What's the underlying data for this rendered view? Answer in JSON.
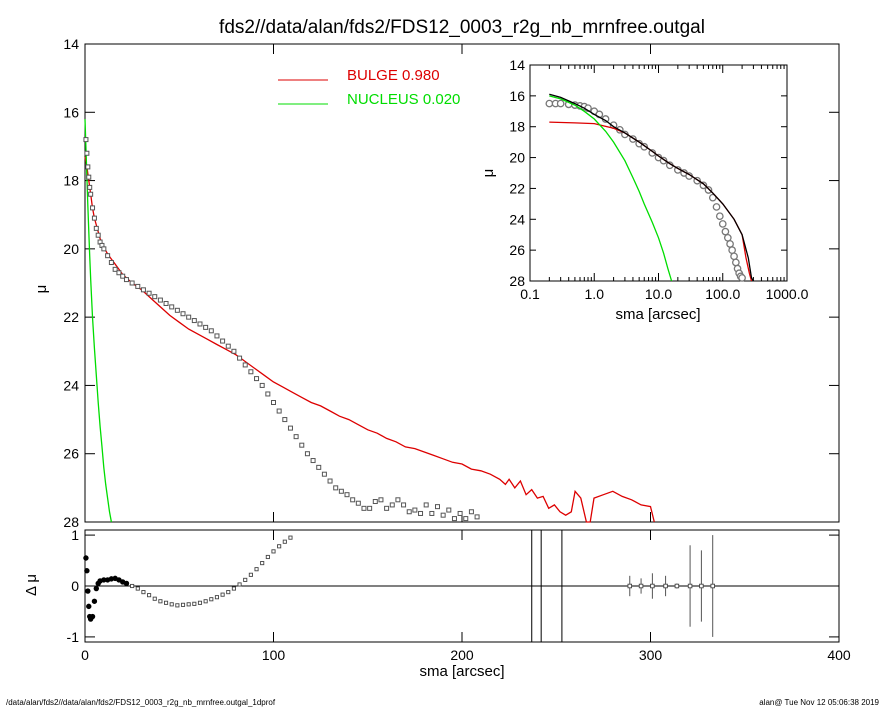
{
  "chart_data": {
    "title": "fds2//data/alan/fds2/FDS12_0003_r2g_nb_mrnfree.outgal",
    "footer_left": "/data/alan/fds2//data/alan/fds2/FDS12_0003_r2g_nb_mrnfree.outgal_1dprof",
    "footer_right": "alan@  Tue Nov 12 05:06:38 2019",
    "legend": [
      {
        "name": "BULGE  0.980",
        "color": "#dd0000"
      },
      {
        "name": "NUCLEUS  0.020",
        "color": "#00dd00"
      }
    ],
    "main": {
      "type": "scatter",
      "ylabel": "μ",
      "xlim": [
        0,
        400
      ],
      "ylim": [
        28,
        14
      ],
      "yticks": [
        "14",
        "16",
        "18",
        "20",
        "22",
        "24",
        "26",
        "28"
      ],
      "data_points": [
        [
          0.5,
          16.8
        ],
        [
          1,
          17.2
        ],
        [
          1.5,
          17.6
        ],
        [
          2,
          17.9
        ],
        [
          2.5,
          18.2
        ],
        [
          3,
          18.4
        ],
        [
          4,
          18.8
        ],
        [
          5,
          19.1
        ],
        [
          6,
          19.4
        ],
        [
          7,
          19.6
        ],
        [
          8,
          19.8
        ],
        [
          9,
          19.9
        ],
        [
          10,
          20.0
        ],
        [
          12,
          20.2
        ],
        [
          14,
          20.4
        ],
        [
          16,
          20.6
        ],
        [
          18,
          20.7
        ],
        [
          20,
          20.8
        ],
        [
          22,
          20.9
        ],
        [
          25,
          21.0
        ],
        [
          28,
          21.1
        ],
        [
          31,
          21.2
        ],
        [
          34,
          21.3
        ],
        [
          37,
          21.4
        ],
        [
          40,
          21.5
        ],
        [
          43,
          21.6
        ],
        [
          46,
          21.7
        ],
        [
          49,
          21.8
        ],
        [
          52,
          21.9
        ],
        [
          55,
          22.0
        ],
        [
          58,
          22.1
        ],
        [
          61,
          22.2
        ],
        [
          64,
          22.3
        ],
        [
          67,
          22.4
        ],
        [
          70,
          22.55
        ],
        [
          73,
          22.7
        ],
        [
          76,
          22.85
        ],
        [
          79,
          23.0
        ],
        [
          82,
          23.2
        ],
        [
          85,
          23.4
        ],
        [
          88,
          23.6
        ],
        [
          91,
          23.8
        ],
        [
          94,
          24.0
        ],
        [
          97,
          24.25
        ],
        [
          100,
          24.5
        ],
        [
          103,
          24.75
        ],
        [
          106,
          25.0
        ],
        [
          109,
          25.25
        ],
        [
          112,
          25.5
        ],
        [
          115,
          25.75
        ],
        [
          118,
          26.0
        ],
        [
          121,
          26.2
        ],
        [
          124,
          26.4
        ],
        [
          127,
          26.6
        ],
        [
          130,
          26.8
        ],
        [
          133,
          27.0
        ],
        [
          136,
          27.1
        ],
        [
          139,
          27.2
        ],
        [
          142,
          27.35
        ],
        [
          145,
          27.45
        ],
        [
          148,
          27.6
        ],
        [
          151,
          27.6
        ],
        [
          154,
          27.4
        ],
        [
          157,
          27.35
        ],
        [
          160,
          27.6
        ],
        [
          163,
          27.5
        ],
        [
          166,
          27.35
        ],
        [
          169,
          27.5
        ],
        [
          172,
          27.7
        ],
        [
          175,
          27.65
        ],
        [
          178,
          27.75
        ],
        [
          181,
          27.5
        ],
        [
          184,
          27.75
        ],
        [
          187,
          27.55
        ],
        [
          190,
          27.8
        ],
        [
          193,
          27.65
        ],
        [
          196,
          27.9
        ],
        [
          199,
          27.75
        ],
        [
          202,
          27.9
        ],
        [
          205,
          27.7
        ],
        [
          208,
          27.85
        ]
      ],
      "bulge_model": [
        [
          0,
          17.3
        ],
        [
          1,
          17.6
        ],
        [
          2,
          18.0
        ],
        [
          3,
          18.4
        ],
        [
          4,
          18.8
        ],
        [
          5,
          19.1
        ],
        [
          6,
          19.3
        ],
        [
          8,
          19.7
        ],
        [
          10,
          19.95
        ],
        [
          12,
          20.15
        ],
        [
          14,
          20.3
        ],
        [
          16,
          20.45
        ],
        [
          18,
          20.6
        ],
        [
          20,
          20.75
        ],
        [
          25,
          21.0
        ],
        [
          30,
          21.2
        ],
        [
          35,
          21.45
        ],
        [
          40,
          21.7
        ],
        [
          45,
          21.95
        ],
        [
          50,
          22.15
        ],
        [
          55,
          22.35
        ],
        [
          60,
          22.5
        ],
        [
          65,
          22.65
        ],
        [
          70,
          22.8
        ],
        [
          75,
          22.95
        ],
        [
          80,
          23.1
        ],
        [
          85,
          23.3
        ],
        [
          90,
          23.5
        ],
        [
          95,
          23.7
        ],
        [
          100,
          23.9
        ],
        [
          105,
          24.05
        ],
        [
          110,
          24.2
        ],
        [
          115,
          24.35
        ],
        [
          120,
          24.5
        ],
        [
          125,
          24.6
        ],
        [
          130,
          24.75
        ],
        [
          135,
          24.9
        ],
        [
          140,
          25.0
        ],
        [
          145,
          25.15
        ],
        [
          150,
          25.3
        ],
        [
          155,
          25.4
        ],
        [
          160,
          25.55
        ],
        [
          165,
          25.65
        ],
        [
          170,
          25.8
        ],
        [
          175,
          25.85
        ],
        [
          180,
          25.95
        ],
        [
          185,
          26.05
        ],
        [
          190,
          26.15
        ],
        [
          195,
          26.25
        ],
        [
          200,
          26.3
        ],
        [
          205,
          26.45
        ],
        [
          210,
          26.5
        ],
        [
          215,
          26.6
        ],
        [
          220,
          26.75
        ],
        [
          223,
          26.9
        ],
        [
          225,
          26.75
        ],
        [
          228,
          27.0
        ],
        [
          231,
          26.8
        ],
        [
          234,
          27.2
        ],
        [
          237,
          27.05
        ],
        [
          240,
          27.3
        ],
        [
          243,
          27.25
        ],
        [
          246,
          27.6
        ],
        [
          249,
          27.5
        ],
        [
          252,
          27.7
        ],
        [
          255,
          27.8
        ],
        [
          258,
          27.7
        ],
        [
          260,
          27.1
        ],
        [
          263,
          27.3
        ],
        [
          266,
          28.0
        ],
        [
          268,
          28.0
        ],
        [
          270,
          27.3
        ],
        [
          275,
          27.2
        ],
        [
          280,
          27.1
        ],
        [
          285,
          27.25
        ],
        [
          290,
          27.35
        ],
        [
          295,
          27.5
        ],
        [
          300,
          27.55
        ],
        [
          302,
          28.0
        ]
      ],
      "nucleus_model": [
        [
          0,
          16.2
        ],
        [
          0.5,
          17.0
        ],
        [
          1,
          17.9
        ],
        [
          1.5,
          18.7
        ],
        [
          2,
          19.5
        ],
        [
          2.5,
          20.2
        ],
        [
          3,
          20.9
        ],
        [
          4,
          22.0
        ],
        [
          5,
          22.9
        ],
        [
          6,
          23.7
        ],
        [
          7,
          24.5
        ],
        [
          8,
          25.2
        ],
        [
          9,
          25.8
        ],
        [
          10,
          26.4
        ],
        [
          11,
          26.9
        ],
        [
          12,
          27.3
        ],
        [
          13,
          27.7
        ],
        [
          14,
          28.0
        ]
      ]
    },
    "inset": {
      "type": "scatter",
      "xscale": "log",
      "xlabel": "sma [arcsec]",
      "ylabel": "μ",
      "xlim": [
        0.1,
        1000
      ],
      "ylim": [
        28,
        14
      ],
      "xticks": [
        "0.1",
        "1.0",
        "10.0",
        "100.0",
        "1000.0"
      ],
      "yticks": [
        "14",
        "16",
        "18",
        "20",
        "22",
        "24",
        "26",
        "28"
      ],
      "data_points": [
        [
          0.2,
          16.5
        ],
        [
          0.25,
          16.5
        ],
        [
          0.3,
          16.5
        ],
        [
          0.4,
          16.55
        ],
        [
          0.5,
          16.6
        ],
        [
          0.6,
          16.65
        ],
        [
          0.7,
          16.7
        ],
        [
          0.8,
          16.8
        ],
        [
          1.0,
          17.0
        ],
        [
          1.2,
          17.2
        ],
        [
          1.5,
          17.5
        ],
        [
          2,
          17.9
        ],
        [
          2.5,
          18.2
        ],
        [
          3,
          18.5
        ],
        [
          4,
          18.8
        ],
        [
          5,
          19.1
        ],
        [
          6,
          19.3
        ],
        [
          8,
          19.7
        ],
        [
          10,
          20.0
        ],
        [
          12,
          20.2
        ],
        [
          15,
          20.5
        ],
        [
          20,
          20.8
        ],
        [
          25,
          21.0
        ],
        [
          30,
          21.2
        ],
        [
          40,
          21.5
        ],
        [
          50,
          21.8
        ],
        [
          60,
          22.1
        ],
        [
          70,
          22.6
        ],
        [
          80,
          23.2
        ],
        [
          90,
          23.8
        ],
        [
          100,
          24.3
        ],
        [
          110,
          24.8
        ],
        [
          120,
          25.2
        ],
        [
          130,
          25.6
        ],
        [
          140,
          26.0
        ],
        [
          150,
          26.4
        ],
        [
          160,
          26.8
        ],
        [
          170,
          27.2
        ],
        [
          180,
          27.5
        ],
        [
          190,
          27.7
        ],
        [
          200,
          27.8
        ]
      ],
      "total_model": [
        [
          0.2,
          15.9
        ],
        [
          0.3,
          16.1
        ],
        [
          0.5,
          16.5
        ],
        [
          0.7,
          16.8
        ],
        [
          1,
          17.2
        ],
        [
          1.5,
          17.6
        ],
        [
          2,
          18.0
        ],
        [
          3,
          18.4
        ],
        [
          5,
          19.0
        ],
        [
          8,
          19.6
        ],
        [
          10,
          19.9
        ],
        [
          15,
          20.4
        ],
        [
          20,
          20.7
        ],
        [
          30,
          21.1
        ],
        [
          50,
          21.7
        ],
        [
          70,
          22.3
        ],
        [
          100,
          23.0
        ],
        [
          150,
          24.0
        ],
        [
          200,
          25.0
        ],
        [
          250,
          26.5
        ],
        [
          280,
          27.8
        ],
        [
          300,
          28.0
        ]
      ],
      "bulge_model": [
        [
          0.2,
          17.7
        ],
        [
          0.5,
          17.75
        ],
        [
          1,
          17.8
        ],
        [
          2,
          18.1
        ],
        [
          3,
          18.4
        ],
        [
          5,
          19.0
        ],
        [
          8,
          19.6
        ],
        [
          10,
          19.9
        ],
        [
          15,
          20.4
        ],
        [
          20,
          20.7
        ],
        [
          30,
          21.1
        ],
        [
          50,
          21.7
        ],
        [
          70,
          22.3
        ],
        [
          100,
          23.0
        ],
        [
          150,
          24.0
        ],
        [
          200,
          25.0
        ],
        [
          230,
          26.5
        ],
        [
          260,
          27.5
        ],
        [
          280,
          28.0
        ]
      ],
      "nucleus_model": [
        [
          0.2,
          16.0
        ],
        [
          0.3,
          16.2
        ],
        [
          0.5,
          16.6
        ],
        [
          0.7,
          17.0
        ],
        [
          1,
          17.5
        ],
        [
          1.5,
          18.3
        ],
        [
          2,
          19.0
        ],
        [
          3,
          20.2
        ],
        [
          4,
          21.3
        ],
        [
          5,
          22.2
        ],
        [
          6,
          23.0
        ],
        [
          8,
          24.2
        ],
        [
          10,
          25.2
        ],
        [
          12,
          26.2
        ],
        [
          14,
          27.2
        ],
        [
          16,
          28.0
        ]
      ]
    },
    "residual": {
      "type": "scatter",
      "xlabel": "sma [arcsec]",
      "ylabel": "Δ μ",
      "xlim": [
        0,
        400
      ],
      "ylim": [
        -1.1,
        1.1
      ],
      "xticks": [
        "0",
        "100",
        "200",
        "300",
        "400"
      ],
      "yticks": [
        "1",
        "0",
        "-1"
      ],
      "data_points": [
        [
          0.5,
          0.55
        ],
        [
          1,
          0.3
        ],
        [
          1.5,
          -0.1
        ],
        [
          2,
          -0.4
        ],
        [
          2.5,
          -0.6
        ],
        [
          3,
          -0.65
        ],
        [
          4,
          -0.6
        ],
        [
          5,
          -0.3
        ],
        [
          6,
          -0.05
        ],
        [
          7,
          0.05
        ],
        [
          8,
          0.1
        ],
        [
          10,
          0.12
        ],
        [
          12,
          0.12
        ],
        [
          14,
          0.14
        ],
        [
          16,
          0.15
        ],
        [
          18,
          0.12
        ],
        [
          20,
          0.08
        ],
        [
          22,
          0.05
        ],
        [
          25,
          0.0
        ],
        [
          28,
          -0.05
        ],
        [
          31,
          -0.12
        ],
        [
          34,
          -0.18
        ],
        [
          37,
          -0.25
        ],
        [
          40,
          -0.3
        ],
        [
          43,
          -0.33
        ],
        [
          46,
          -0.36
        ],
        [
          49,
          -0.38
        ],
        [
          52,
          -0.37
        ],
        [
          55,
          -0.36
        ],
        [
          58,
          -0.35
        ],
        [
          61,
          -0.33
        ],
        [
          64,
          -0.3
        ],
        [
          67,
          -0.26
        ],
        [
          70,
          -0.22
        ],
        [
          73,
          -0.17
        ],
        [
          76,
          -0.12
        ],
        [
          79,
          -0.05
        ],
        [
          82,
          0.03
        ],
        [
          85,
          0.12
        ],
        [
          88,
          0.22
        ],
        [
          91,
          0.33
        ],
        [
          94,
          0.45
        ],
        [
          97,
          0.57
        ],
        [
          100,
          0.68
        ],
        [
          103,
          0.78
        ],
        [
          106,
          0.87
        ],
        [
          109,
          0.95
        ]
      ],
      "error_points": [
        [
          289,
          0.0,
          0.2
        ],
        [
          295,
          0.0,
          0.15
        ],
        [
          301,
          0.0,
          0.25
        ],
        [
          308,
          0.0,
          0.2
        ],
        [
          314,
          0.0,
          0.05
        ],
        [
          321,
          0.0,
          0.8
        ],
        [
          327,
          0.0,
          0.7
        ],
        [
          333,
          0.0,
          1.0
        ]
      ],
      "vertical_lines": [
        237,
        242,
        253
      ]
    }
  }
}
